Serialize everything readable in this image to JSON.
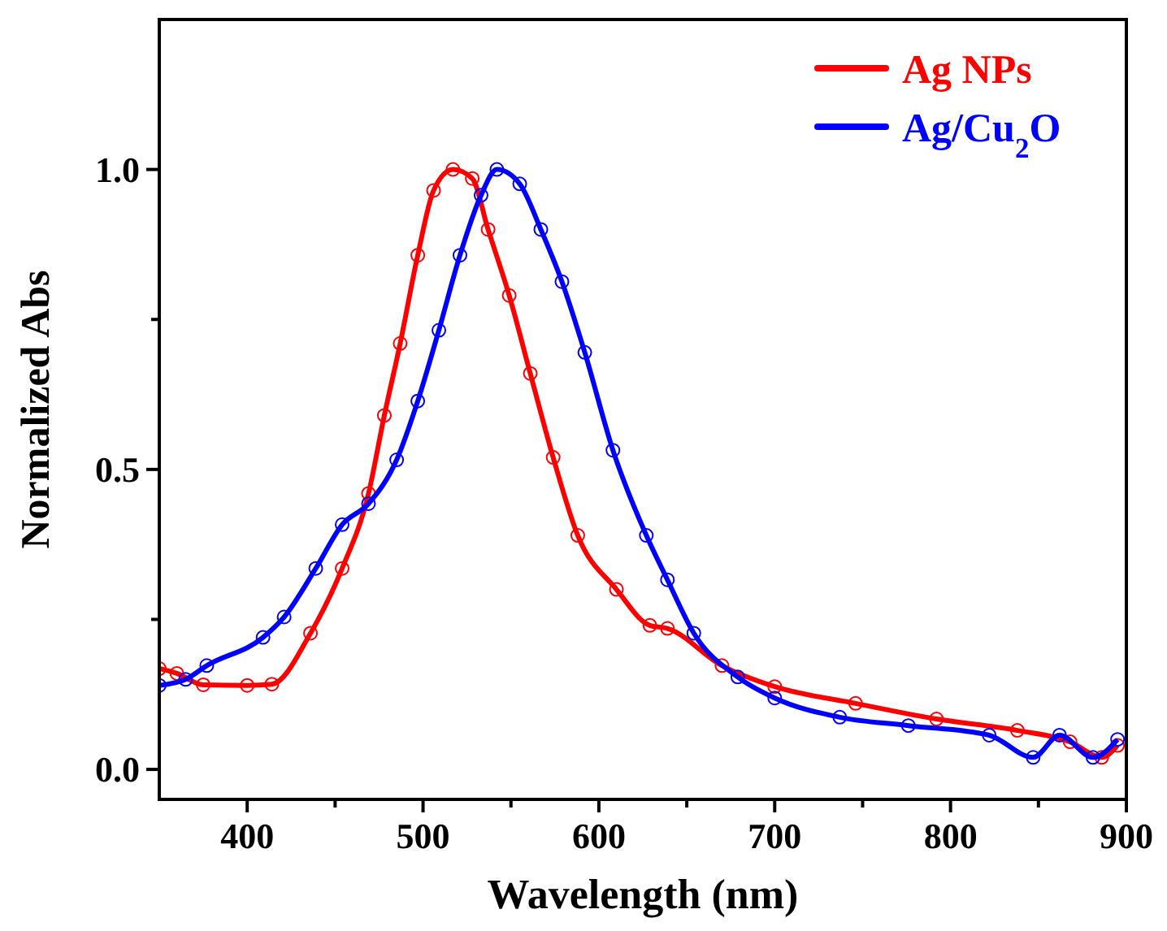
{
  "chart_data": {
    "type": "line",
    "xlabel": "Wavelength (nm)",
    "ylabel": "Normalized Abs",
    "xlim": [
      350,
      900
    ],
    "ylim": [
      -0.05,
      1.25
    ],
    "xticks": [
      400,
      {
        "value": 450,
        "label": null
      },
      500,
      {
        "value": 550,
        "label": null
      },
      600,
      {
        "value": 650,
        "label": null
      },
      700,
      {
        "value": 750,
        "label": null
      },
      800,
      {
        "value": 850,
        "label": null
      },
      900
    ],
    "yticks": [
      {
        "value": 0,
        "label": "0.0"
      },
      {
        "value": 0.25,
        "label": null
      },
      0.5,
      {
        "value": 0.75,
        "label": null
      },
      {
        "value": 1,
        "label": "1.0"
      }
    ],
    "grid": false,
    "legend": "top right",
    "marker": "circle",
    "line_style": "solid",
    "series": [
      {
        "name": "Ag NPs",
        "color": "#ff0000",
        "x": [
          350,
          360,
          375,
          400,
          414,
          436,
          454,
          469,
          478,
          487,
          497,
          506,
          517,
          528,
          537,
          549,
          561,
          574,
          588,
          610,
          629,
          639,
          670,
          700,
          746,
          792,
          838,
          868,
          886,
          895
        ],
        "values": [
          0.168,
          0.16,
          0.141,
          0.14,
          0.142,
          0.227,
          0.335,
          0.46,
          0.59,
          0.71,
          0.857,
          0.965,
          1.0,
          0.985,
          0.9,
          0.79,
          0.66,
          0.52,
          0.39,
          0.3,
          0.24,
          0.235,
          0.173,
          0.138,
          0.11,
          0.084,
          0.065,
          0.046,
          0.02,
          0.04
        ]
      },
      {
        "name": "Ag/Cu$_{2}$O",
        "color": "#0000ff",
        "x": [
          350,
          365,
          377,
          409,
          421,
          439,
          454,
          469,
          485,
          497,
          509,
          521,
          533,
          542,
          555,
          567,
          579,
          592,
          608,
          627,
          639,
          654,
          679,
          700,
          737,
          776,
          822,
          847,
          862,
          881,
          895
        ],
        "values": [
          0.14,
          0.15,
          0.173,
          0.22,
          0.254,
          0.335,
          0.408,
          0.443,
          0.516,
          0.614,
          0.732,
          0.857,
          0.957,
          1.0,
          0.976,
          0.9,
          0.813,
          0.695,
          0.532,
          0.39,
          0.316,
          0.227,
          0.154,
          0.119,
          0.087,
          0.073,
          0.057,
          0.02,
          0.057,
          0.02,
          0.05
        ]
      }
    ]
  }
}
